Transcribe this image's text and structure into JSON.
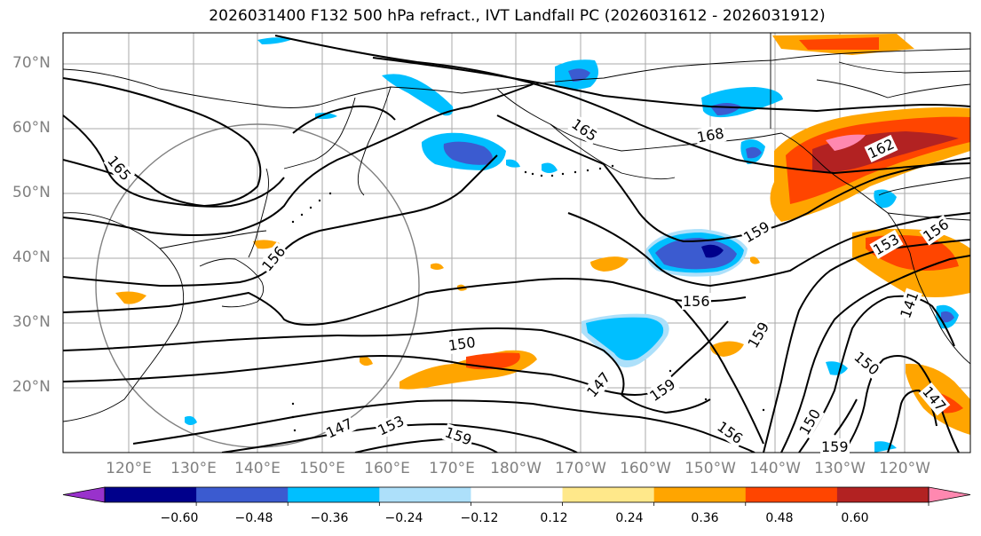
{
  "title": "2026031400 F132 500 hPa refract., IVT Landfall PC (2026031612 - 2026031912)",
  "lat_labels": [
    "70°N",
    "60°N",
    "50°N",
    "40°N",
    "30°N",
    "20°N"
  ],
  "lon_labels": [
    "120°E",
    "130°E",
    "140°E",
    "150°E",
    "160°E",
    "170°E",
    "180°W",
    "170°W",
    "160°W",
    "150°W",
    "140°W",
    "130°W",
    "120°W"
  ],
  "colorbar": {
    "ticks": [
      "−0.60",
      "−0.48",
      "−0.36",
      "−0.24",
      "−0.12",
      "0.12",
      "0.24",
      "0.36",
      "0.48",
      "0.60"
    ],
    "colors": [
      "#9932CC",
      "#00008B",
      "#3B5BD0",
      "#00BFFF",
      "#ADE0FA",
      "#FFFFFF",
      "#FFE88A",
      "#FFA500",
      "#FF4500",
      "#B22222",
      "#FF88B0"
    ]
  },
  "contour_labels": [
    "165",
    "165",
    "168",
    "162",
    "159",
    "156",
    "156",
    "153",
    "153",
    "150",
    "150",
    "147",
    "147",
    "159",
    "159",
    "159",
    "156",
    "150",
    "159",
    "141",
    "147",
    "156"
  ]
}
